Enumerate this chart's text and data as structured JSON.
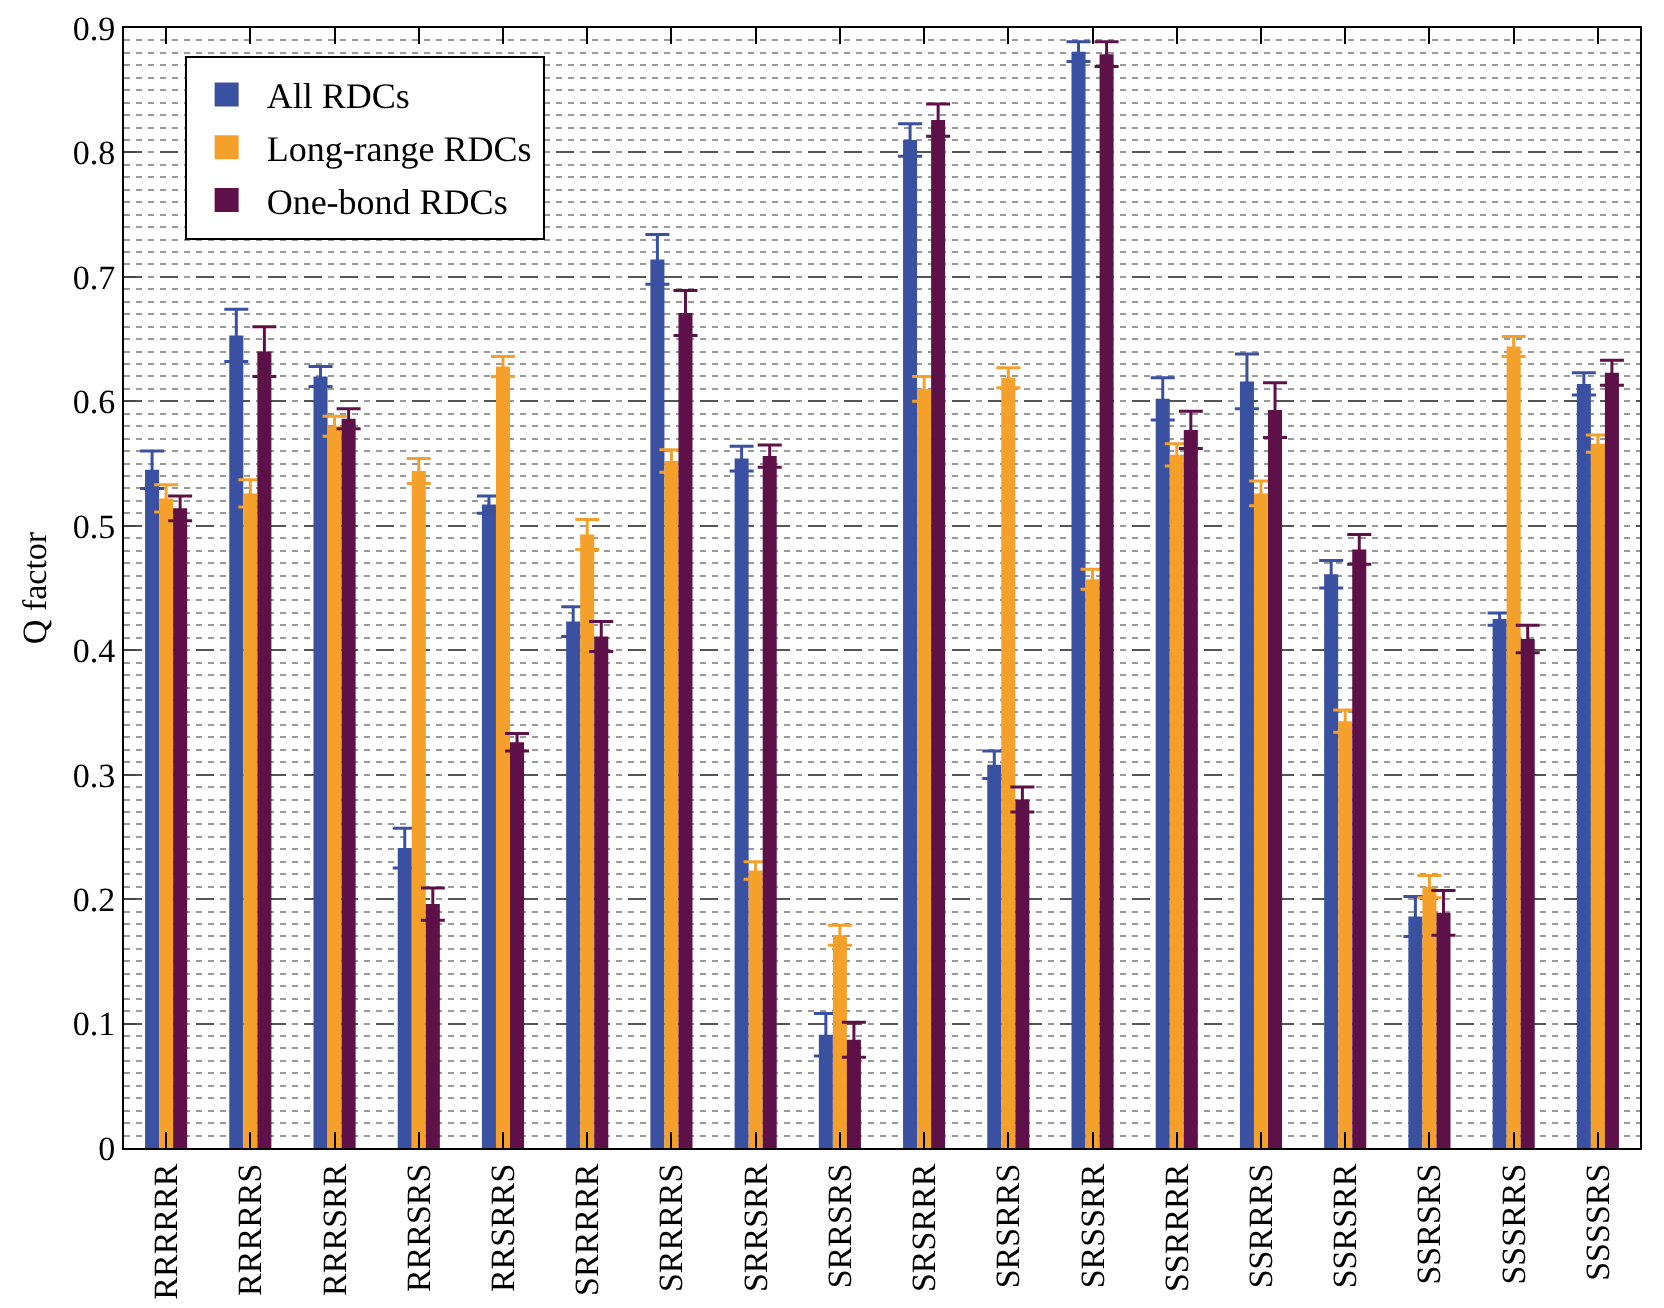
{
  "chart_data": {
    "type": "bar",
    "ylabel": "Q factor",
    "categories": [
      "RRRRRR",
      "RRRRRS",
      "RRRSRR",
      "RRRSRS",
      "RRSRRS",
      "SRRRRR",
      "SRRRRS",
      "SRRSRR",
      "SRRSRS",
      "SRSRRR",
      "SRSRRS",
      "SRSSRR",
      "SSRRRR",
      "SSRRRS",
      "SSRSRR",
      "SSRSRS",
      "SSSRRS",
      "SSSSRS"
    ],
    "series": [
      {
        "name": "All RDCs",
        "color": "#3a50a0",
        "values": [
          0.545,
          0.653,
          0.62,
          0.241,
          0.517,
          0.423,
          0.714,
          0.554,
          0.091,
          0.81,
          0.308,
          0.881,
          0.602,
          0.616,
          0.461,
          0.186,
          0.425,
          0.614
        ],
        "errors": [
          0.015,
          0.021,
          0.008,
          0.016,
          0.007,
          0.012,
          0.02,
          0.01,
          0.017,
          0.013,
          0.011,
          0.008,
          0.017,
          0.022,
          0.011,
          0.016,
          0.005,
          0.009
        ]
      },
      {
        "name": "Long-range RDCs",
        "color": "#f5a02a",
        "values": [
          0.522,
          0.526,
          0.58,
          0.544,
          0.628,
          0.493,
          0.552,
          0.223,
          0.171,
          0.61,
          0.619,
          0.457,
          0.557,
          0.526,
          0.343,
          0.21,
          0.644,
          0.566
        ],
        "errors": [
          0.011,
          0.011,
          0.008,
          0.01,
          0.008,
          0.012,
          0.009,
          0.007,
          0.008,
          0.01,
          0.008,
          0.008,
          0.009,
          0.01,
          0.009,
          0.009,
          0.008,
          0.007
        ]
      },
      {
        "name": "One-bond RDCs",
        "color": "#5e1048",
        "values": [
          0.514,
          0.64,
          0.586,
          0.196,
          0.326,
          0.411,
          0.671,
          0.556,
          0.087,
          0.826,
          0.28,
          0.879,
          0.577,
          0.593,
          0.481,
          0.189,
          0.409,
          0.623
        ],
        "errors": [
          0.01,
          0.02,
          0.008,
          0.013,
          0.007,
          0.012,
          0.018,
          0.009,
          0.014,
          0.013,
          0.01,
          0.01,
          0.015,
          0.022,
          0.012,
          0.018,
          0.011,
          0.01
        ]
      }
    ],
    "ylim": [
      0,
      0.9
    ],
    "yticks": [
      0,
      0.1,
      0.2,
      0.3,
      0.4,
      0.5,
      0.6,
      0.7,
      0.8,
      0.9
    ],
    "grid": "y",
    "legend": "top left"
  }
}
